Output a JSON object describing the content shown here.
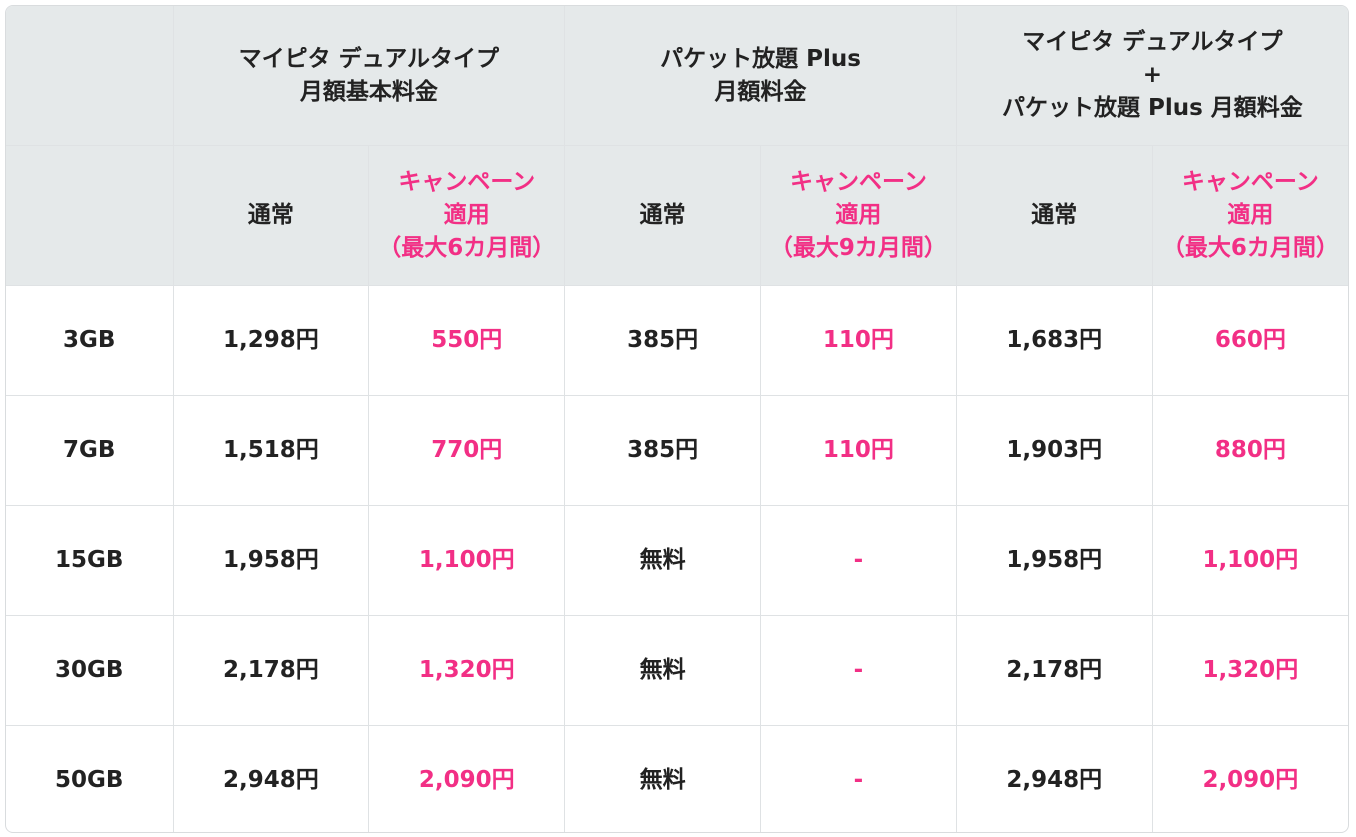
{
  "header": {
    "groups": [
      {
        "lines": [
          "マイピタ デュアルタイプ",
          "月額基本料金"
        ]
      },
      {
        "lines": [
          "パケット放題 Plus",
          "月額料金"
        ]
      },
      {
        "lines": [
          "マイピタ デュアルタイプ",
          "+",
          "パケット放題 Plus 月額料金"
        ]
      }
    ],
    "subheaders": [
      {
        "lines": [
          "通常"
        ]
      },
      {
        "lines": [
          "キャンペーン",
          "適用",
          "（最大6カ月間）"
        ],
        "campaign": true
      },
      {
        "lines": [
          "通常"
        ]
      },
      {
        "lines": [
          "キャンペーン",
          "適用",
          "（最大9カ月間）"
        ],
        "campaign": true
      },
      {
        "lines": [
          "通常"
        ]
      },
      {
        "lines": [
          "キャンペーン",
          "適用",
          "（最大6カ月間）"
        ],
        "campaign": true
      }
    ]
  },
  "table": {
    "rows": [
      {
        "plan": "3GB",
        "cells": [
          "1,298円",
          "550円",
          "385円",
          "110円",
          "1,683円",
          "660円"
        ]
      },
      {
        "plan": "7GB",
        "cells": [
          "1,518円",
          "770円",
          "385円",
          "110円",
          "1,903円",
          "880円"
        ]
      },
      {
        "plan": "15GB",
        "cells": [
          "1,958円",
          "1,100円",
          "無料",
          "-",
          "1,958円",
          "1,100円"
        ]
      },
      {
        "plan": "30GB",
        "cells": [
          "2,178円",
          "1,320円",
          "無料",
          "-",
          "2,178円",
          "1,320円"
        ]
      },
      {
        "plan": "50GB",
        "cells": [
          "2,948円",
          "2,090円",
          "無料",
          "-",
          "2,948円",
          "2,090円"
        ]
      }
    ]
  }
}
